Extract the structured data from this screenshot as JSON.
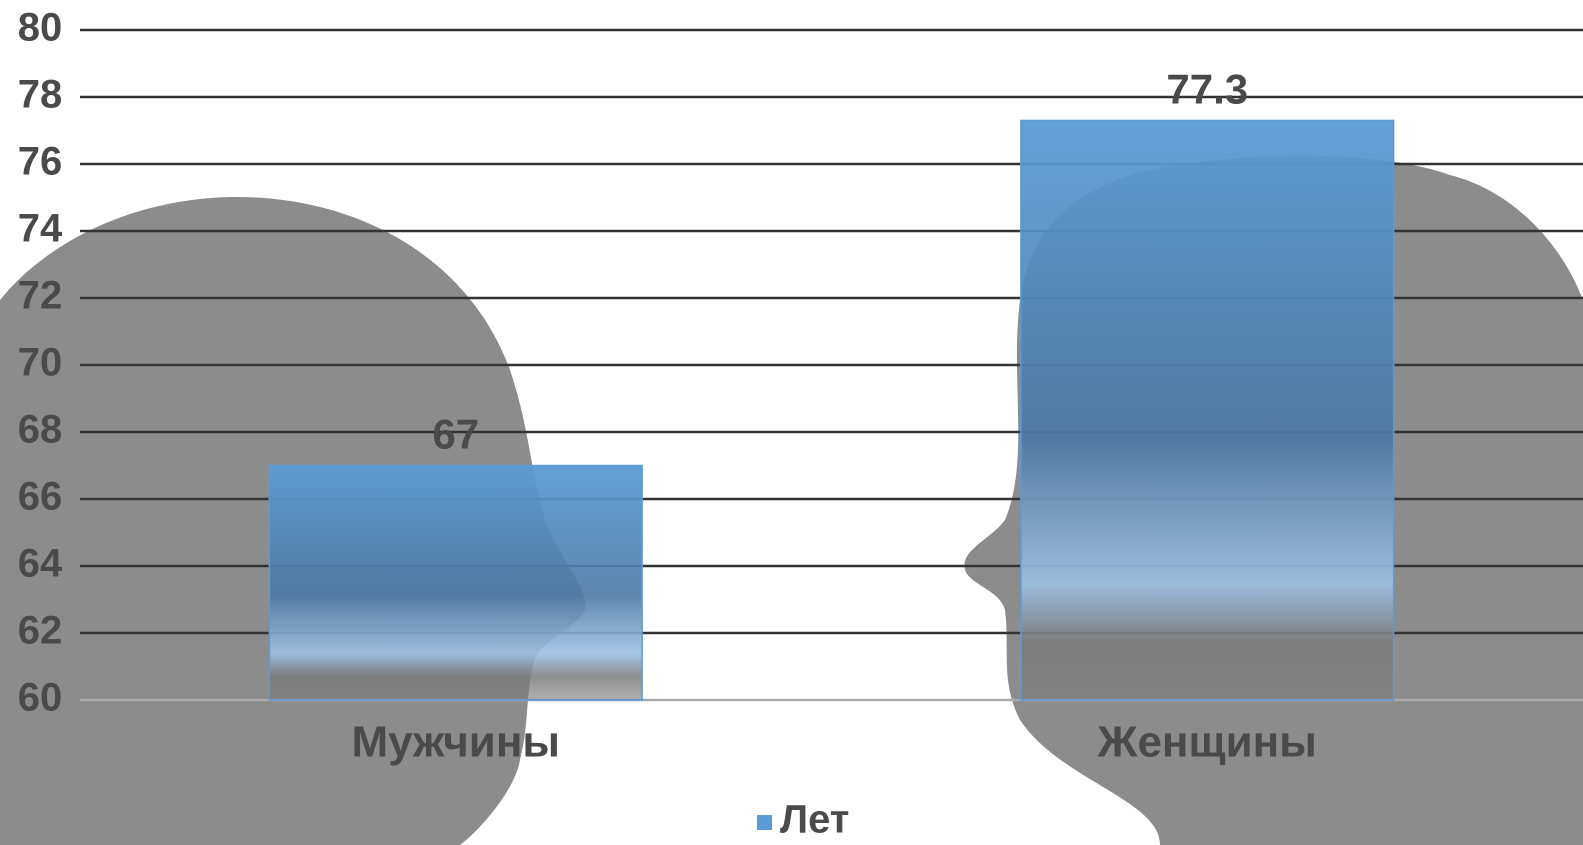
{
  "chart_data": {
    "type": "bar",
    "categories": [
      "Мужчины",
      "Женщины"
    ],
    "series": [
      {
        "name": "Лет",
        "color": "#5b9bd5",
        "values": [
          67,
          77.3
        ]
      }
    ],
    "ylim": [
      60,
      80
    ],
    "yticks": [
      60,
      62,
      64,
      66,
      68,
      70,
      72,
      74,
      76,
      78,
      80
    ],
    "grid": true,
    "legend": "bottom"
  }
}
